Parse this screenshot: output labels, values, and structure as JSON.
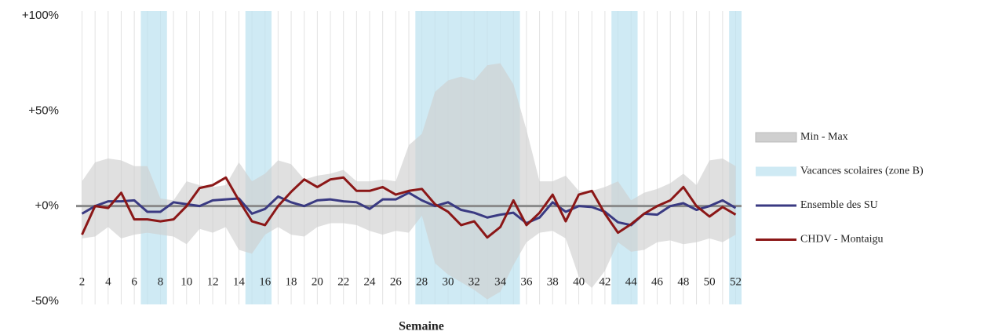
{
  "chart_data": {
    "type": "line",
    "x_label": "Semaine",
    "x": [
      2,
      3,
      4,
      5,
      6,
      7,
      8,
      9,
      10,
      11,
      12,
      13,
      14,
      15,
      16,
      17,
      18,
      19,
      20,
      21,
      22,
      23,
      24,
      25,
      26,
      27,
      28,
      29,
      30,
      31,
      32,
      33,
      34,
      35,
      36,
      37,
      38,
      39,
      40,
      41,
      42,
      43,
      44,
      45,
      46,
      47,
      48,
      49,
      50,
      51,
      52
    ],
    "xlim": [
      1.55,
      52.45
    ],
    "xticks": [
      2,
      4,
      6,
      8,
      10,
      12,
      14,
      16,
      18,
      20,
      22,
      24,
      26,
      28,
      30,
      32,
      34,
      36,
      38,
      40,
      42,
      44,
      46,
      48,
      50,
      52
    ],
    "ylim": [
      -50,
      100
    ],
    "yticks": [
      {
        "value": -50,
        "label": "-50%"
      },
      {
        "value": 0,
        "label": "+0%"
      },
      {
        "value": 50,
        "label": "+50%"
      },
      {
        "value": 100,
        "label": "+100%"
      }
    ],
    "baseline": 0,
    "series": [
      {
        "name": "Vacances scolaires (zone B)",
        "type": "ranges",
        "color": "#bfe3f0",
        "ranges": [
          [
            7,
            8
          ],
          [
            15,
            16
          ],
          [
            28,
            35
          ],
          [
            43,
            44
          ],
          [
            52,
            52
          ]
        ]
      },
      {
        "name": "Min - Max",
        "type": "band",
        "color": "#cfcfcf",
        "high": [
          13,
          23,
          25,
          24,
          21,
          21,
          4,
          3,
          13,
          11,
          10,
          11,
          23,
          13,
          17,
          24,
          22,
          14,
          16,
          17,
          19,
          13,
          13,
          14,
          13,
          32,
          38,
          60,
          66,
          68,
          66,
          74,
          75,
          64,
          40,
          13,
          13,
          16,
          8,
          8,
          10,
          13,
          3,
          7,
          9,
          12,
          17,
          11,
          24,
          25,
          21
        ],
        "low": [
          -17,
          -16,
          -11,
          -17,
          -15,
          -14,
          -15,
          -16,
          -20,
          -12,
          -14,
          -11,
          -23,
          -25,
          -15,
          -11,
          -15,
          -16,
          -11,
          -9,
          -9,
          -10,
          -13,
          -15,
          -13,
          -14,
          -5,
          -30,
          -36,
          -40,
          -44,
          -49,
          -45,
          -31,
          -19,
          -14,
          -13,
          -17,
          -37,
          -43,
          -34,
          -19,
          -24,
          -23,
          -19,
          -18,
          -20,
          -19,
          -17,
          -19,
          -15
        ]
      },
      {
        "name": "Ensemble des SU",
        "type": "line",
        "color": "#3a3a82",
        "values": [
          -4,
          0,
          2.5,
          2.5,
          3,
          -3,
          -3,
          2,
          1,
          0,
          3,
          3.5,
          4,
          -4,
          -1.5,
          5,
          2,
          0,
          3,
          3.5,
          2.5,
          2,
          -1.5,
          3.5,
          3.5,
          7,
          3,
          0,
          2,
          -2,
          -3.5,
          -6,
          -4.5,
          -3.5,
          -9,
          -6,
          2,
          -3,
          0,
          -0.5,
          -3,
          -8.5,
          -10,
          -4,
          -4.5,
          0,
          1.5,
          -2,
          0,
          3,
          -1
        ]
      },
      {
        "name": "CHDV - Montaigu",
        "type": "line",
        "color": "#8b1717",
        "values": [
          -15,
          0,
          -1,
          7,
          -7,
          -7,
          -8,
          -7,
          0,
          9.5,
          11,
          15,
          3,
          -8,
          -10,
          0,
          7.5,
          14,
          10,
          14,
          15,
          8,
          8,
          10,
          6,
          8,
          9,
          1,
          -3,
          -10,
          -8,
          -16.5,
          -11,
          3,
          -10,
          -3.5,
          6,
          -8,
          6,
          8,
          -4,
          -14,
          -9.5,
          -4,
          0,
          3,
          10,
          0,
          -5.5,
          -0.5,
          -4.5
        ]
      }
    ]
  }
}
